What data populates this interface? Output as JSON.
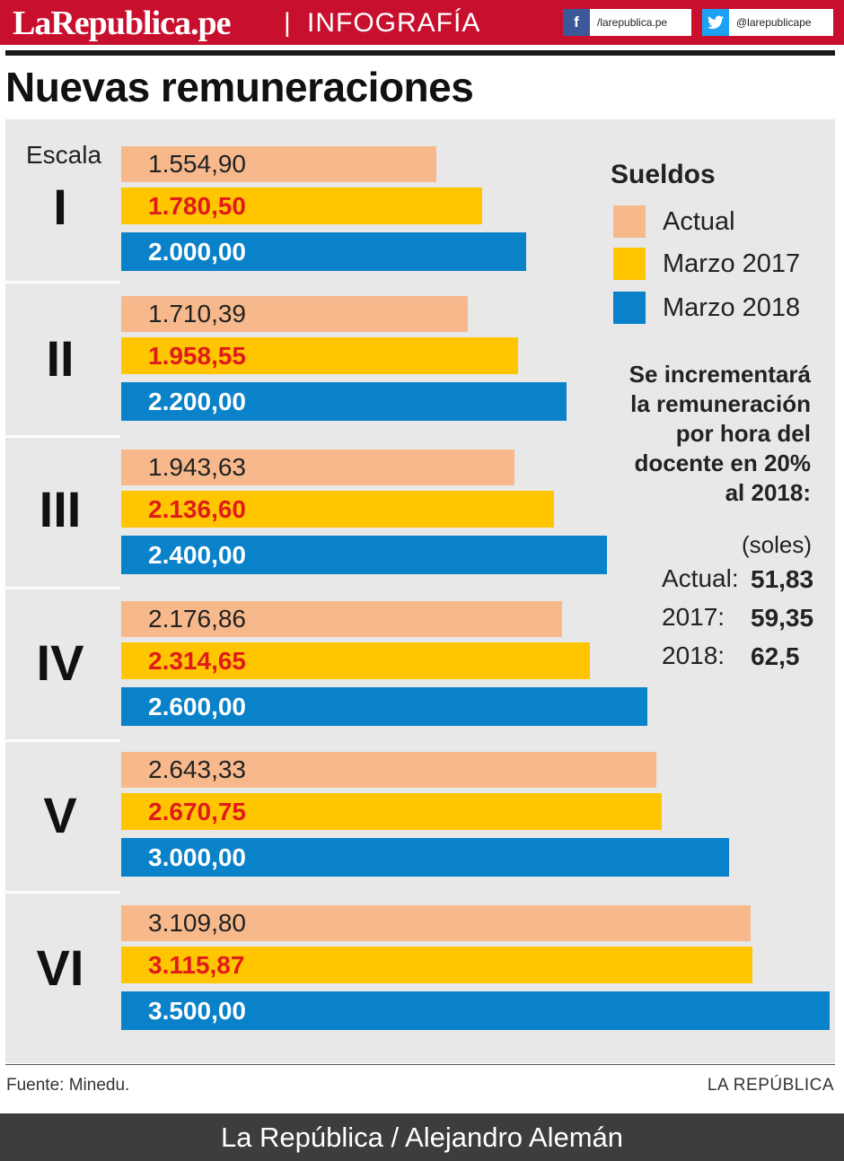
{
  "header": {
    "brand": "LaRepublica.pe",
    "separator": "|",
    "section": "INFOGRAFÍA",
    "facebook": "/larepublica.pe",
    "twitter": "@larepublicape",
    "facebook_icon": "facebook-icon",
    "twitter_icon": "twitter-icon"
  },
  "colors": {
    "brand_red": "#c8102e",
    "actual": "#f7b98c",
    "marzo_2017": "#ffc600",
    "marzo_2018": "#0a82c9",
    "value_2017": "#e01b1b",
    "panel": "#e8e8e8"
  },
  "title": "Nuevas remuneraciones",
  "chart_data": {
    "type": "bar",
    "orientation": "horizontal",
    "category_axis_label": "Escala",
    "categories": [
      "I",
      "II",
      "III",
      "IV",
      "V",
      "VI"
    ],
    "series": [
      {
        "name": "Actual",
        "values": [
          1554.9,
          1710.39,
          1943.63,
          2176.86,
          2643.33,
          3109.8
        ],
        "labels": [
          "1.554,90",
          "1.710,39",
          "1.943,63",
          "2.176,86",
          "2.643,33",
          "3.109,80"
        ]
      },
      {
        "name": "Marzo 2017",
        "values": [
          1780.5,
          1958.55,
          2136.6,
          2314.65,
          2670.75,
          3115.87
        ],
        "labels": [
          "1.780,50",
          "1.958,55",
          "2.136,60",
          "2.314,65",
          "2.670,75",
          "3.115,87"
        ]
      },
      {
        "name": "Marzo 2018",
        "values": [
          2000.0,
          2200.0,
          2400.0,
          2600.0,
          3000.0,
          3500.0
        ],
        "labels": [
          "2.000,00",
          "2.200,00",
          "2.400,00",
          "2.600,00",
          "3.000,00",
          "3.500,00"
        ]
      }
    ],
    "legend_title": "Sueldos",
    "legend_position": "top-right",
    "grid": false
  },
  "note": {
    "lines": [
      "Se incrementará",
      "la remuneración",
      "por hora del",
      "docente en 20%",
      "al 2018:"
    ],
    "unit": "(soles)",
    "rates": [
      {
        "label": "Actual:",
        "value": "51,83"
      },
      {
        "label": "2017:",
        "value": "59,35"
      },
      {
        "label": "2018:",
        "value": "62,5"
      }
    ]
  },
  "footer": {
    "source": "Fuente: Minedu.",
    "publisher": "LA REPÚBLICA",
    "credit": "La República / Alejandro Alemán"
  }
}
